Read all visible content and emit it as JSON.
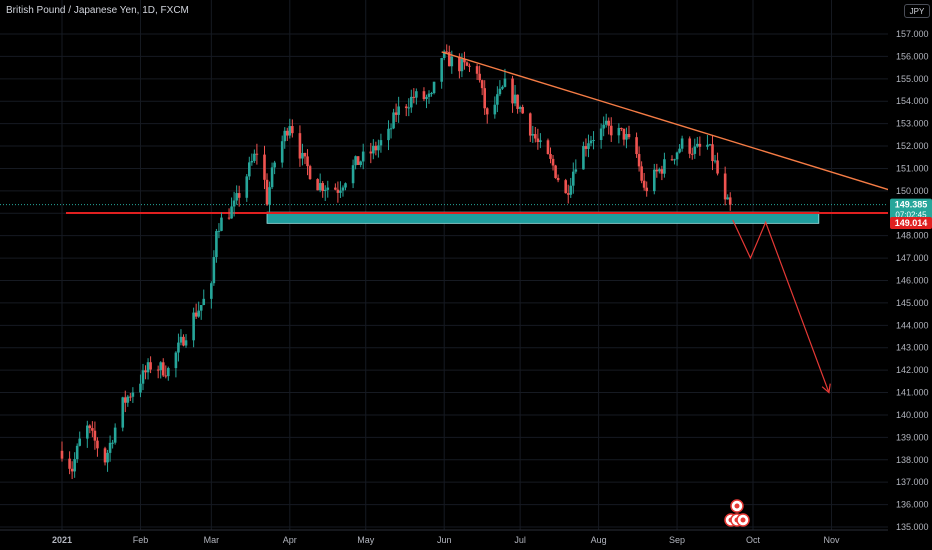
{
  "header": {
    "symbol_title": "British Pound / Japanese Yen, 1D, FXCM",
    "currency": "JPY"
  },
  "price_badges": {
    "last": "149.385",
    "countdown": "07:02:45",
    "level": "149.014"
  },
  "colors": {
    "up": "#26a69a",
    "down": "#ef5350",
    "trendline": "#f57c45",
    "support_zone": "#1f9e9e",
    "level_line": "#e02020",
    "projection": "#e53935",
    "last_badge": "#26a69a",
    "level_badge": "#e02020"
  },
  "chart_data": {
    "type": "candlestick",
    "title": "British Pound / Japanese Yen, 1D, FXCM",
    "xlabel": "",
    "ylabel": "",
    "ylim": [
      134.9,
      157.7
    ],
    "x_ticks": [
      "2021",
      "Feb",
      "Mar",
      "Apr",
      "May",
      "Jun",
      "Jul",
      "Aug",
      "Sep",
      "Oct",
      "Nov"
    ],
    "x_tick_dates": [
      "2021-01-01",
      "2021-02-01",
      "2021-03-01",
      "2021-04-01",
      "2021-05-01",
      "2021-06-01",
      "2021-07-01",
      "2021-08-01",
      "2021-09-01",
      "2021-10-01",
      "2021-11-01"
    ],
    "y_ticks": [
      135.0,
      136.0,
      137.0,
      138.0,
      139.0,
      140.0,
      141.0,
      142.0,
      143.0,
      144.0,
      145.0,
      146.0,
      147.0,
      148.0,
      149.0,
      150.0,
      151.0,
      152.0,
      153.0,
      154.0,
      155.0,
      156.0,
      157.0
    ],
    "grid": true,
    "last_price": 149.385,
    "horizontal_level": 149.014,
    "support_zone": {
      "from": "2021-03-23",
      "to": "2021-10-27",
      "low": 148.55,
      "high": 149.05
    },
    "trendline": {
      "start": {
        "date": "2021-05-31",
        "price": 156.2
      },
      "end": {
        "date": "2021-11-28",
        "price": 149.9
      }
    },
    "projection_path": [
      {
        "date": "2021-09-23",
        "price": 148.7
      },
      {
        "date": "2021-09-30",
        "price": 147.0
      },
      {
        "date": "2021-10-06",
        "price": 148.6
      },
      {
        "date": "2021-10-31",
        "price": 141.0
      }
    ],
    "candles_anchor_points": [
      {
        "date": "2021-01-01",
        "close": 138.4
      },
      {
        "date": "2021-01-05",
        "close": 137.6
      },
      {
        "date": "2021-01-10",
        "close": 139.6
      },
      {
        "date": "2021-01-18",
        "close": 138.0
      },
      {
        "date": "2021-01-25",
        "close": 140.5
      },
      {
        "date": "2021-02-05",
        "close": 142.2
      },
      {
        "date": "2021-02-12",
        "close": 142.0
      },
      {
        "date": "2021-02-22",
        "close": 144.4
      },
      {
        "date": "2021-03-01",
        "close": 145.6
      },
      {
        "date": "2021-03-03",
        "close": 148.4
      },
      {
        "date": "2021-03-10",
        "close": 149.3
      },
      {
        "date": "2021-03-16",
        "close": 151.0
      },
      {
        "date": "2021-03-20",
        "close": 152.0
      },
      {
        "date": "2021-03-23",
        "close": 149.6
      },
      {
        "date": "2021-03-26",
        "close": 151.3
      },
      {
        "date": "2021-04-01",
        "close": 153.1
      },
      {
        "date": "2021-04-06",
        "close": 151.4
      },
      {
        "date": "2021-04-12",
        "close": 150.3
      },
      {
        "date": "2021-04-20",
        "close": 150.1
      },
      {
        "date": "2021-04-27",
        "close": 151.2
      },
      {
        "date": "2021-05-04",
        "close": 151.8
      },
      {
        "date": "2021-05-10",
        "close": 152.5
      },
      {
        "date": "2021-05-13",
        "close": 153.5
      },
      {
        "date": "2021-05-20",
        "close": 154.2
      },
      {
        "date": "2021-05-27",
        "close": 154.1
      },
      {
        "date": "2021-05-31",
        "close": 156.0
      },
      {
        "date": "2021-06-07",
        "close": 155.6
      },
      {
        "date": "2021-06-14",
        "close": 155.4
      },
      {
        "date": "2021-06-18",
        "close": 153.2
      },
      {
        "date": "2021-06-25",
        "close": 154.7
      },
      {
        "date": "2021-07-01",
        "close": 153.7
      },
      {
        "date": "2021-07-08",
        "close": 152.1
      },
      {
        "date": "2021-07-14",
        "close": 151.1
      },
      {
        "date": "2021-07-19",
        "close": 149.8
      },
      {
        "date": "2021-07-23",
        "close": 151.3
      },
      {
        "date": "2021-07-28",
        "close": 152.3
      },
      {
        "date": "2021-08-04",
        "close": 152.8
      },
      {
        "date": "2021-08-11",
        "close": 152.5
      },
      {
        "date": "2021-08-16",
        "close": 151.6
      },
      {
        "date": "2021-08-19",
        "close": 150.0
      },
      {
        "date": "2021-08-24",
        "close": 150.8
      },
      {
        "date": "2021-08-30",
        "close": 151.5
      },
      {
        "date": "2021-09-03",
        "close": 152.1
      },
      {
        "date": "2021-09-08",
        "close": 151.8
      },
      {
        "date": "2021-09-13",
        "close": 152.0
      },
      {
        "date": "2021-09-16",
        "close": 151.2
      },
      {
        "date": "2021-09-20",
        "close": 149.4
      },
      {
        "date": "2021-09-22",
        "close": 149.385
      }
    ]
  }
}
